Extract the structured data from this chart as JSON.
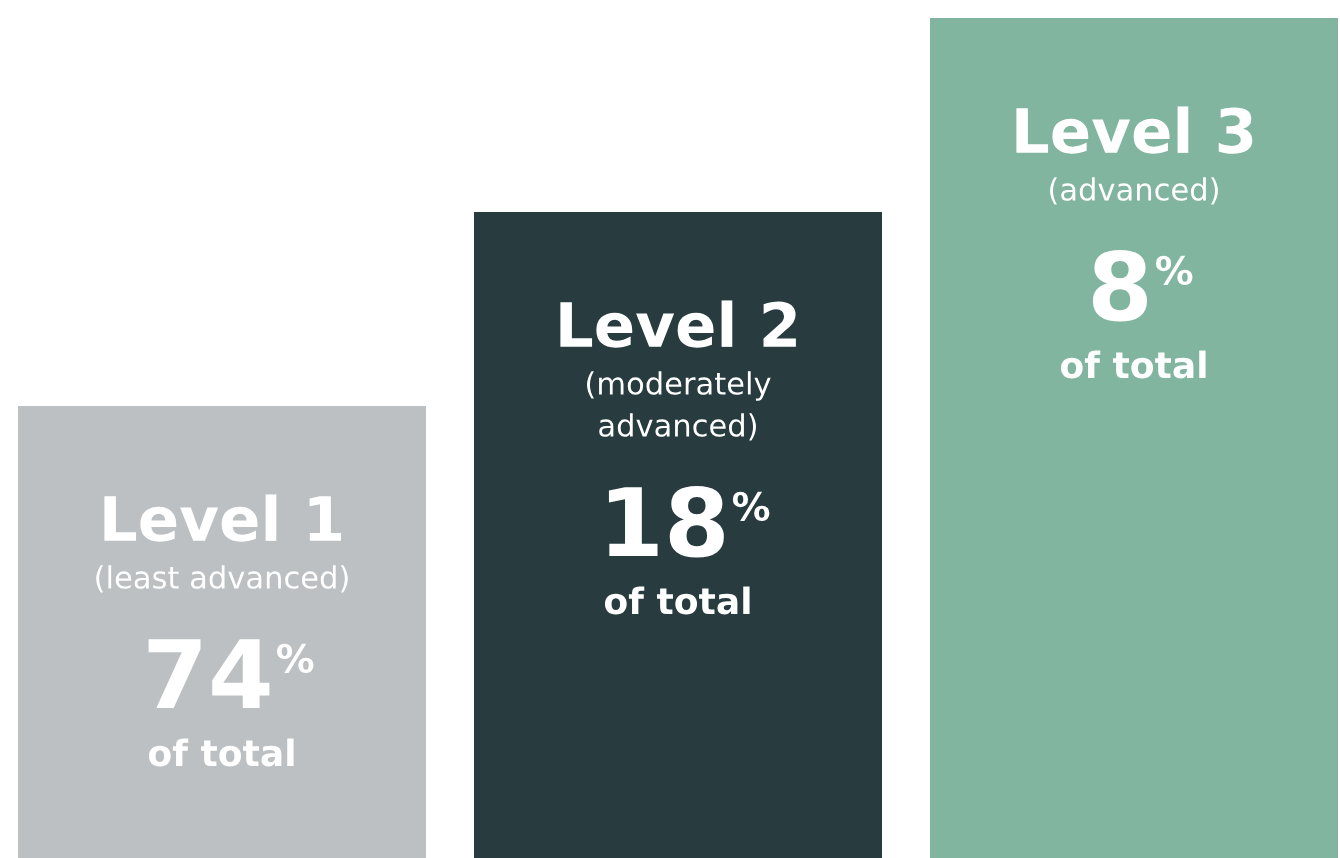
{
  "chart_data": {
    "type": "other",
    "categories": [
      "Level 1\n(least advanced)",
      "Level 2\n(moderately\nadvanced)",
      "Level 3\n(advanced)"
    ],
    "values": [
      74,
      18,
      8
    ],
    "value_labels": [
      "74%",
      "18%",
      "8%"
    ],
    "colors": [
      "#bdc0c3",
      "#283c40",
      "#82b5a0"
    ],
    "annotations": [
      "of total",
      "of total",
      "of total"
    ]
  }
}
